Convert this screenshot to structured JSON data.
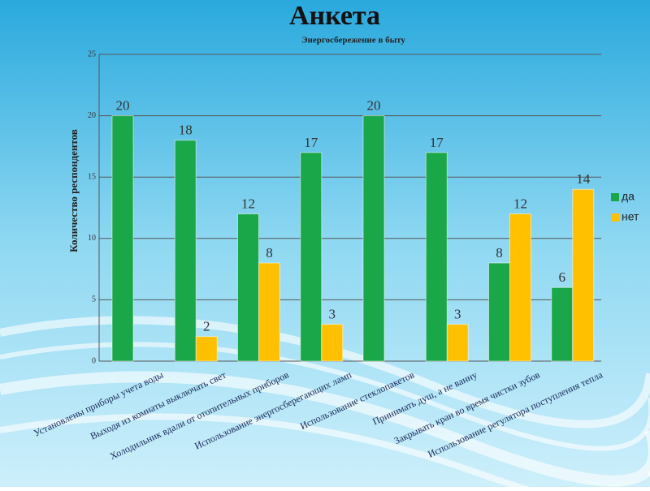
{
  "chart_data": {
    "type": "bar",
    "title": "Анкета",
    "subtitle": "Энергосбережение в быту",
    "y_label": "Количество респондентов",
    "categories": [
      "Установлены приборы учета воды",
      "Выходя из комнаты выключать свет",
      "Холодильник вдали от отопительных приборов",
      "Использование энергосберегающих ламп",
      "Использование стеклопакетов",
      "Принимать душ, а не ванну",
      "Закрывать кран во время чистки зубов",
      "Использование регулятора поступления тепла"
    ],
    "series": [
      {
        "name": "да",
        "color": "#1aa74a",
        "values": [
          20,
          18,
          12,
          17,
          20,
          17,
          8,
          6
        ]
      },
      {
        "name": "нет",
        "color": "#ffc000",
        "values": [
          null,
          2,
          8,
          3,
          null,
          3,
          12,
          14
        ]
      }
    ],
    "ylim": [
      0,
      25
    ],
    "yticks": [
      0,
      5,
      10,
      15,
      20,
      25
    ],
    "grid": true,
    "legend": "right"
  }
}
